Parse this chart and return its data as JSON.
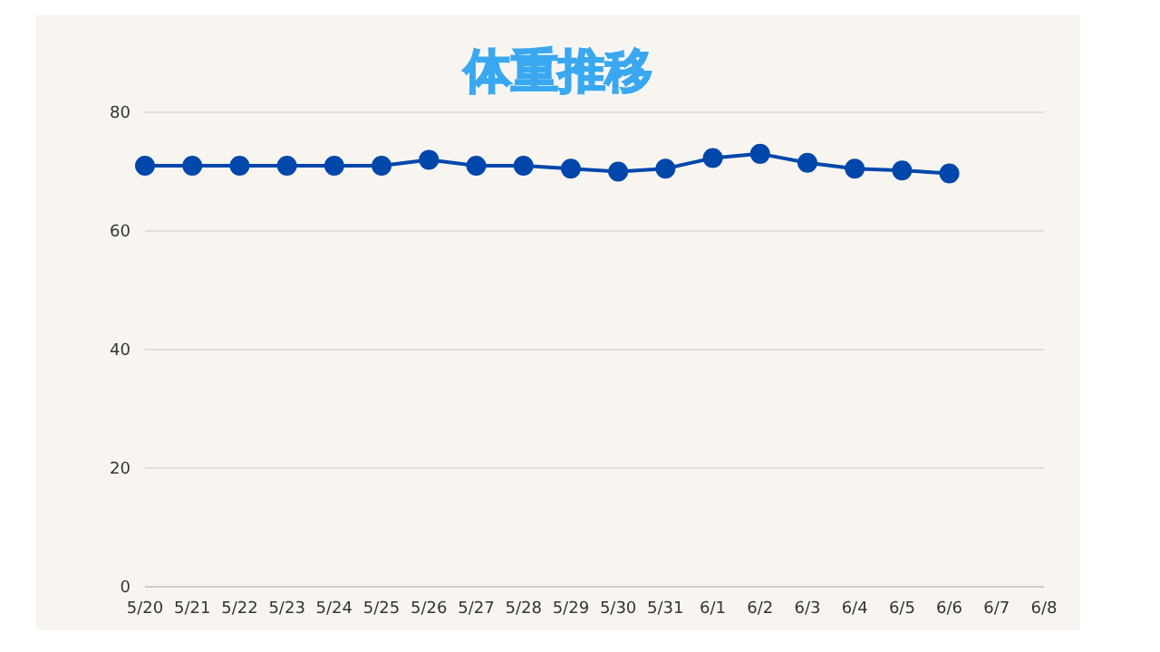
{
  "chart_data": {
    "type": "line",
    "title": "体重推移",
    "categories": [
      "5/20",
      "5/21",
      "5/22",
      "5/23",
      "5/24",
      "5/25",
      "5/26",
      "5/27",
      "5/28",
      "5/29",
      "5/30",
      "5/31",
      "6/1",
      "6/2",
      "6/3",
      "6/4",
      "6/5",
      "6/6",
      "6/7",
      "6/8"
    ],
    "series": [
      {
        "color": "#0047ab",
        "values": [
          71,
          71,
          71,
          71,
          71,
          71,
          72,
          71,
          71,
          70.5,
          70,
          70.5,
          72.3,
          73,
          71.5,
          70.5,
          70.2,
          69.7,
          null,
          null
        ]
      }
    ],
    "ylim": [
      0,
      80
    ],
    "yticks": [
      0,
      20,
      40,
      60,
      80
    ],
    "grid": "y",
    "marker": "circle",
    "line_style": "solid"
  }
}
